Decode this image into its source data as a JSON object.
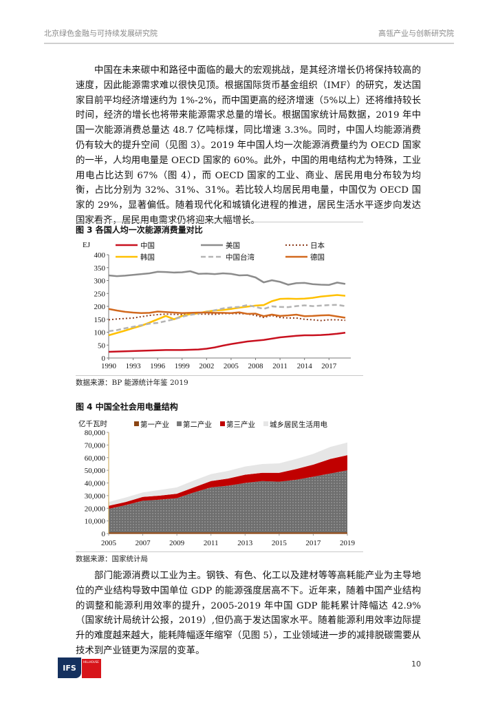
{
  "header": {
    "left": "北京绿色金融与可持续发展研究院",
    "right": "高瓴产业与创新研究院"
  },
  "paragraphs": [
    "中国在未来碳中和路径中面临的最大的宏观挑战，是其经济增长仍将保持较高的速度，因此能源需求难以很快见顶。根据国际货币基金组织（IMF）的研究，发达国家目前平均经济增速约为 1%-2%，而中国更高的经济增速（5%以上）还将维持较长时间，经济的增长也将带来能源需求总量的增长。根据国家统计局数据，2019 年中国一次能源消费总量达 48.7 亿吨标煤，同比增速 3.3%。同时，中国人均能源消费仍有较大的提升空间（见图 3）。2019 年中国人均一次能源消费量约为 OECD 国家的一半，人均用电量是 OECD 国家的 60%。此外，中国的用电结构尤为特殊，工业用电占比达到 67%（图 4），而 OECD 国家的工业、商业、居民用电分布较为均衡，占比分别为 32%、31%、31%。若比较人均居民用电量，中国仅为 OECD 国家的 29%，显著偏低。随着现代化和城镇化进程的推进，居民生活水平逐步向发达国家看齐，居民用电需求仍将迎来大幅增长。",
    "部门能源消费以工业为主。钢铁、有色、化工以及建材等等高耗能产业为主导地位的产业结构导致中国单位 GDP 的能源强度居高不下。近年来，随着中国产业结构的调整和能源利用效率的提升，2005-2019 年中国 GDP 能耗累计降幅达 42.9%（国家统计局统计公报，2019）,但仍高于发达国家水平。随着能源利用效率边际提升的难度越来越大，能耗降幅逐年缩窄（见图 5），工业领域进一步的减排脱碳需要从技术到产业链更为深层的变革。"
  ],
  "figures": {
    "fig3": {
      "title": "图 3  各国人均一次能源消费量对比",
      "source": "数据来源：BP 能源统计年鉴 2019"
    },
    "fig4": {
      "title": "图 4  中国全社会用电量结构",
      "source": "数据来源：国家统计局"
    }
  },
  "chart_data": [
    {
      "type": "line",
      "ylabel": "EJ",
      "ylim": [
        0,
        400
      ],
      "yticks": [
        "0",
        "50",
        "100",
        "150",
        "200",
        "250",
        "300",
        "350",
        "400"
      ],
      "xticks": [
        "1990",
        "1993",
        "1996",
        "1999",
        "2002",
        "2005",
        "2008",
        "2011",
        "2014",
        "2017"
      ],
      "x": [
        1990,
        1991,
        1992,
        1993,
        1994,
        1995,
        1996,
        1997,
        1998,
        1999,
        2000,
        2001,
        2002,
        2003,
        2004,
        2005,
        2006,
        2007,
        2008,
        2009,
        2010,
        2011,
        2012,
        2013,
        2014,
        2015,
        2016,
        2017,
        2018,
        2019
      ],
      "legend": "top",
      "grid": false,
      "series": [
        {
          "name": "中国",
          "color": "#c8101e",
          "style": "solid",
          "values": [
            24,
            25,
            26,
            27,
            28,
            29,
            30,
            31,
            31,
            31,
            32,
            33,
            36,
            41,
            48,
            54,
            59,
            64,
            67,
            70,
            75,
            80,
            83,
            86,
            88,
            88,
            89,
            91,
            94,
            98
          ]
        },
        {
          "name": "美国",
          "color": "#8c8c8c",
          "style": "solid",
          "values": [
            320,
            317,
            319,
            322,
            325,
            328,
            334,
            333,
            331,
            332,
            336,
            326,
            327,
            325,
            328,
            326,
            320,
            321,
            312,
            293,
            301,
            295,
            284,
            290,
            291,
            286,
            284,
            283,
            292,
            287
          ]
        },
        {
          "name": "日本",
          "color": "#8b3a1a",
          "style": "dotted",
          "values": [
            148,
            151,
            153,
            155,
            160,
            165,
            168,
            170,
            169,
            168,
            172,
            170,
            170,
            169,
            172,
            172,
            172,
            171,
            165,
            157,
            165,
            157,
            155,
            155,
            150,
            148,
            145,
            148,
            148,
            146
          ]
        },
        {
          "name": "韩国",
          "color": "#ffc000",
          "style": "solid",
          "values": [
            88,
            97,
            106,
            116,
            125,
            137,
            150,
            163,
            150,
            163,
            170,
            173,
            180,
            184,
            186,
            190,
            195,
            199,
            203,
            205,
            220,
            229,
            230,
            229,
            230,
            233,
            238,
            241,
            244,
            241
          ]
        },
        {
          "name": "中国台湾",
          "color": "#b4b4b4",
          "style": "dashed",
          "values": [
            104,
            108,
            115,
            121,
            127,
            133,
            136,
            143,
            150,
            160,
            167,
            172,
            178,
            185,
            192,
            196,
            198,
            205,
            198,
            190,
            200,
            198,
            197,
            201,
            204,
            201,
            203,
            205,
            206,
            201
          ]
        },
        {
          "name": "德国",
          "color": "#d2691e",
          "style": "solid",
          "values": [
            190,
            184,
            179,
            176,
            174,
            175,
            180,
            178,
            176,
            174,
            175,
            176,
            176,
            175,
            175,
            174,
            177,
            171,
            172,
            162,
            168,
            163,
            165,
            168,
            162,
            163,
            165,
            166,
            161,
            156
          ]
        }
      ]
    },
    {
      "type": "area",
      "stacked": true,
      "ylabel": "亿千瓦时",
      "ylim": [
        0,
        80000
      ],
      "yticks": [
        "0",
        "10,000",
        "20,000",
        "30,000",
        "40,000",
        "50,000",
        "60,000",
        "70,000",
        "80,000"
      ],
      "xticks": [
        "2005",
        "2007",
        "2009",
        "2011",
        "2013",
        "2015",
        "2017",
        "2019"
      ],
      "x": [
        2005,
        2006,
        2007,
        2008,
        2009,
        2010,
        2011,
        2012,
        2013,
        2014,
        2015,
        2016,
        2017,
        2018,
        2019
      ],
      "legend": "top",
      "grid": false,
      "series": [
        {
          "name": "第一产业",
          "color": "#8b4513",
          "values": [
            1000,
            1000,
            1000,
            1000,
            1000,
            1000,
            1000,
            1000,
            1000,
            1000,
            1000,
            1000,
            1000,
            1000,
            1000
          ]
        },
        {
          "name": "第二产业",
          "color": "#7a7a7a",
          "values": [
            18500,
            21500,
            25000,
            25800,
            27000,
            31500,
            35500,
            36800,
            39000,
            40500,
            40000,
            41500,
            44000,
            46500,
            49000
          ]
        },
        {
          "name": "第三产业",
          "color": "#c00000",
          "values": [
            2500,
            2500,
            3000,
            3200,
            3500,
            4000,
            5000,
            5700,
            6500,
            6500,
            7000,
            8500,
            9500,
            11500,
            12000
          ]
        },
        {
          "name": "城乡居民生活用电",
          "color": "#e6e6e6",
          "values": [
            3000,
            3500,
            3500,
            4500,
            5000,
            5500,
            5500,
            6000,
            6500,
            7000,
            7500,
            8000,
            8500,
            9500,
            10000
          ]
        }
      ]
    }
  ],
  "footer": {
    "page": "10",
    "logo1": "IFS",
    "logo2": "HILLHOUSE"
  }
}
